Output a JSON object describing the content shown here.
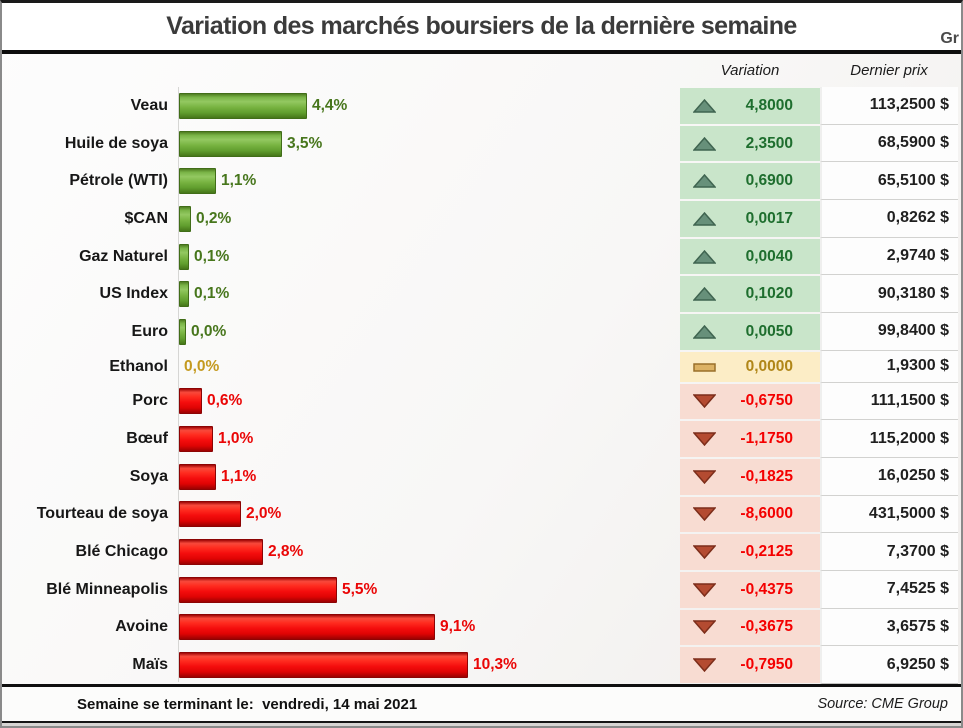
{
  "title": "Variation des marchés boursiers de la dernière semaine",
  "logo_fragment": "Gr",
  "columns": {
    "variation": "Variation",
    "price": "Dernier prix"
  },
  "footer": {
    "label": "Semaine se terminant le: ",
    "date": "vendredi, 14 mai 2021",
    "source": "Source: CME Group"
  },
  "colors": {
    "bar_up": "#6aa839",
    "bar_down": "#f40d0d",
    "pct_up_text": "#47761c",
    "pct_down_text": "#ea0606",
    "pct_flat_text": "#c49a1f",
    "cell_up_bg": "#c9e5ca",
    "cell_flat_bg": "#fcedc6",
    "cell_down_bg": "#f8dcd2",
    "up_icon": "#67907a",
    "down_icon": "#b44b31",
    "flat_icon": "#dcb264"
  },
  "chart_data": {
    "type": "bar",
    "orientation": "horizontal",
    "title": "Variation des marchés boursiers de la dernière semaine",
    "value_unit": "percent (absolute change over the week)",
    "xlim": [
      0,
      10.5
    ],
    "categories": [
      "Veau",
      "Huile de soya",
      "Pétrole (WTI)",
      "$CAN",
      "Gaz Naturel",
      "US Index",
      "Euro",
      "Ethanol",
      "Porc",
      "Bœuf",
      "Soya",
      "Tourteau de soya",
      "Blé Chicago",
      "Blé Minneapolis",
      "Avoine",
      "Maïs"
    ],
    "rows": [
      {
        "label": "Veau",
        "pct": "4,4%",
        "pct_value": 4.4,
        "direction": "up",
        "variation": "4,8000",
        "price": "113,2500 $"
      },
      {
        "label": "Huile de soya",
        "pct": "3,5%",
        "pct_value": 3.5,
        "direction": "up",
        "variation": "2,3500",
        "price": "68,5900 $"
      },
      {
        "label": "Pétrole (WTI)",
        "pct": "1,1%",
        "pct_value": 1.1,
        "direction": "up",
        "variation": "0,6900",
        "price": "65,5100 $"
      },
      {
        "label": "$CAN",
        "pct": "0,2%",
        "pct_value": 0.2,
        "direction": "up",
        "variation": "0,0017",
        "price": "0,8262 $"
      },
      {
        "label": "Gaz Naturel",
        "pct": "0,1%",
        "pct_value": 0.1,
        "direction": "up",
        "variation": "0,0040",
        "price": "2,9740 $"
      },
      {
        "label": "US Index",
        "pct": "0,1%",
        "pct_value": 0.1,
        "direction": "up",
        "variation": "0,1020",
        "price": "90,3180 $"
      },
      {
        "label": "Euro",
        "pct": "0,0%",
        "pct_value": 0.0,
        "direction": "up",
        "variation": "0,0050",
        "price": "99,8400 $"
      },
      {
        "label": "Ethanol",
        "pct": "0,0%",
        "pct_value": 0.0,
        "direction": "flat",
        "variation": "0,0000",
        "price": "1,9300 $"
      },
      {
        "label": "Porc",
        "pct": "0,6%",
        "pct_value": 0.6,
        "direction": "down",
        "variation": "-0,6750",
        "price": "111,1500 $"
      },
      {
        "label": "Bœuf",
        "pct": "1,0%",
        "pct_value": 1.0,
        "direction": "down",
        "variation": "-1,1750",
        "price": "115,2000 $"
      },
      {
        "label": "Soya",
        "pct": "1,1%",
        "pct_value": 1.1,
        "direction": "down",
        "variation": "-0,1825",
        "price": "16,0250 $"
      },
      {
        "label": "Tourteau de soya",
        "pct": "2,0%",
        "pct_value": 2.0,
        "direction": "down",
        "variation": "-8,6000",
        "price": "431,5000 $"
      },
      {
        "label": "Blé Chicago",
        "pct": "2,8%",
        "pct_value": 2.8,
        "direction": "down",
        "variation": "-0,2125",
        "price": "7,3700 $"
      },
      {
        "label": "Blé Minneapolis",
        "pct": "5,5%",
        "pct_value": 5.5,
        "direction": "down",
        "variation": "-0,4375",
        "price": "7,4525 $"
      },
      {
        "label": "Avoine",
        "pct": "9,1%",
        "pct_value": 9.1,
        "direction": "down",
        "variation": "-0,3675",
        "price": "3,6575 $"
      },
      {
        "label": "Maïs",
        "pct": "10,3%",
        "pct_value": 10.3,
        "direction": "down",
        "variation": "-0,7950",
        "price": "6,9250 $"
      }
    ]
  }
}
